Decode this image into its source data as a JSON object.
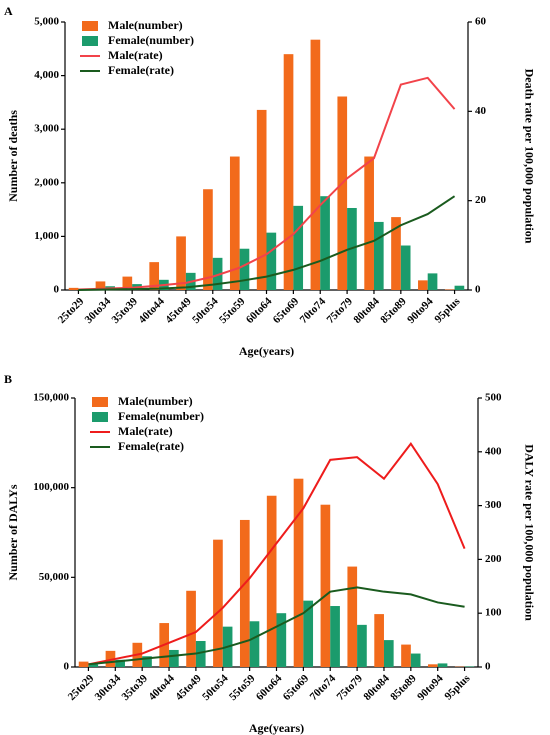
{
  "chart_data": [
    {
      "type": "bar",
      "label": "A",
      "y_label": "Number of deaths",
      "y2_label": "Death rate per 100,000 population",
      "x_label": "Age(years)",
      "categories": [
        "25to29",
        "30to34",
        "35to39",
        "40to44",
        "45to49",
        "50to54",
        "55to59",
        "60to64",
        "65to69",
        "70to74",
        "75to79",
        "80to84",
        "85to89",
        "90to94",
        "95plus"
      ],
      "ylim": [
        0,
        5000
      ],
      "yticks": [
        0,
        {
          "value": 1000,
          "label": "1,000"
        },
        {
          "value": 2000,
          "label": "2,000"
        },
        {
          "value": 3000,
          "label": "3,000"
        },
        {
          "value": 4000,
          "label": "4,000"
        },
        {
          "value": 5000,
          "label": "5,000"
        }
      ],
      "y2lim": [
        0,
        60
      ],
      "y2ticks": [
        0,
        20,
        40,
        60
      ],
      "series": [
        {
          "name": "Male(number)",
          "type": "bar",
          "color": "#f26a1b",
          "values": [
            40,
            160,
            250,
            520,
            1000,
            1880,
            2490,
            3360,
            4400,
            4670,
            3610,
            2490,
            1360,
            180,
            10
          ]
        },
        {
          "name": "Female(number)",
          "type": "bar",
          "color": "#1b9b6c",
          "values": [
            10,
            70,
            110,
            190,
            320,
            600,
            770,
            1070,
            1570,
            1750,
            1530,
            1270,
            830,
            310,
            80
          ]
        },
        {
          "name": "Male(rate)",
          "type": "line",
          "axis": "y2",
          "color": "#f2434a",
          "values": [
            0.1,
            0.3,
            0.5,
            1,
            1.6,
            3,
            5,
            8,
            12.5,
            19,
            25,
            29.5,
            46,
            47.5,
            40.5
          ]
        },
        {
          "name": "Female(rate)",
          "type": "line",
          "axis": "y2",
          "color": "#1a5b1e",
          "values": [
            0,
            0.1,
            0.2,
            0.3,
            0.6,
            1.2,
            2,
            3,
            4.5,
            6.5,
            9,
            11,
            14.5,
            17,
            21
          ]
        }
      ]
    },
    {
      "type": "bar",
      "label": "B",
      "y_label": "Number of DALYs",
      "y2_label": "DALY rate per 100,000 population",
      "x_label": "Age(years)",
      "categories": [
        "25to29",
        "30to34",
        "35to39",
        "40to44",
        "45to49",
        "50to54",
        "55to59",
        "60to64",
        "65to69",
        "70to74",
        "75to79",
        "80to84",
        "85to89",
        "90to94",
        "95plus"
      ],
      "ylim": [
        0,
        150000
      ],
      "yticks": [
        0,
        {
          "value": 50000,
          "label": "50,000"
        },
        {
          "value": 100000,
          "label": "100,000"
        },
        {
          "value": 150000,
          "label": "150,000"
        }
      ],
      "y2lim": [
        0,
        500
      ],
      "y2ticks": [
        0,
        100,
        200,
        300,
        400,
        500
      ],
      "series": [
        {
          "name": "Male(number)",
          "type": "bar",
          "color": "#f26a1b",
          "values": [
            3000,
            9000,
            13500,
            24500,
            42500,
            71000,
            82000,
            95500,
            105000,
            90500,
            56000,
            29500,
            12500,
            1500,
            200
          ]
        },
        {
          "name": "Female(number)",
          "type": "bar",
          "color": "#1b9b6c",
          "values": [
            1500,
            4000,
            6000,
            9500,
            14500,
            22500,
            25500,
            30000,
            37000,
            34000,
            23500,
            15000,
            7500,
            2000,
            300
          ]
        },
        {
          "name": "Male(rate)",
          "type": "line",
          "axis": "y2",
          "color": "#ee1c1c",
          "values": [
            5,
            15,
            25,
            45,
            65,
            110,
            165,
            230,
            295,
            385,
            390,
            350,
            415,
            340,
            220
          ]
        },
        {
          "name": "Female(rate)",
          "type": "line",
          "axis": "y2",
          "color": "#1a5b1e",
          "values": [
            5,
            10,
            15,
            20,
            25,
            35,
            50,
            75,
            100,
            140,
            148,
            140,
            135,
            120,
            112
          ]
        }
      ]
    }
  ]
}
